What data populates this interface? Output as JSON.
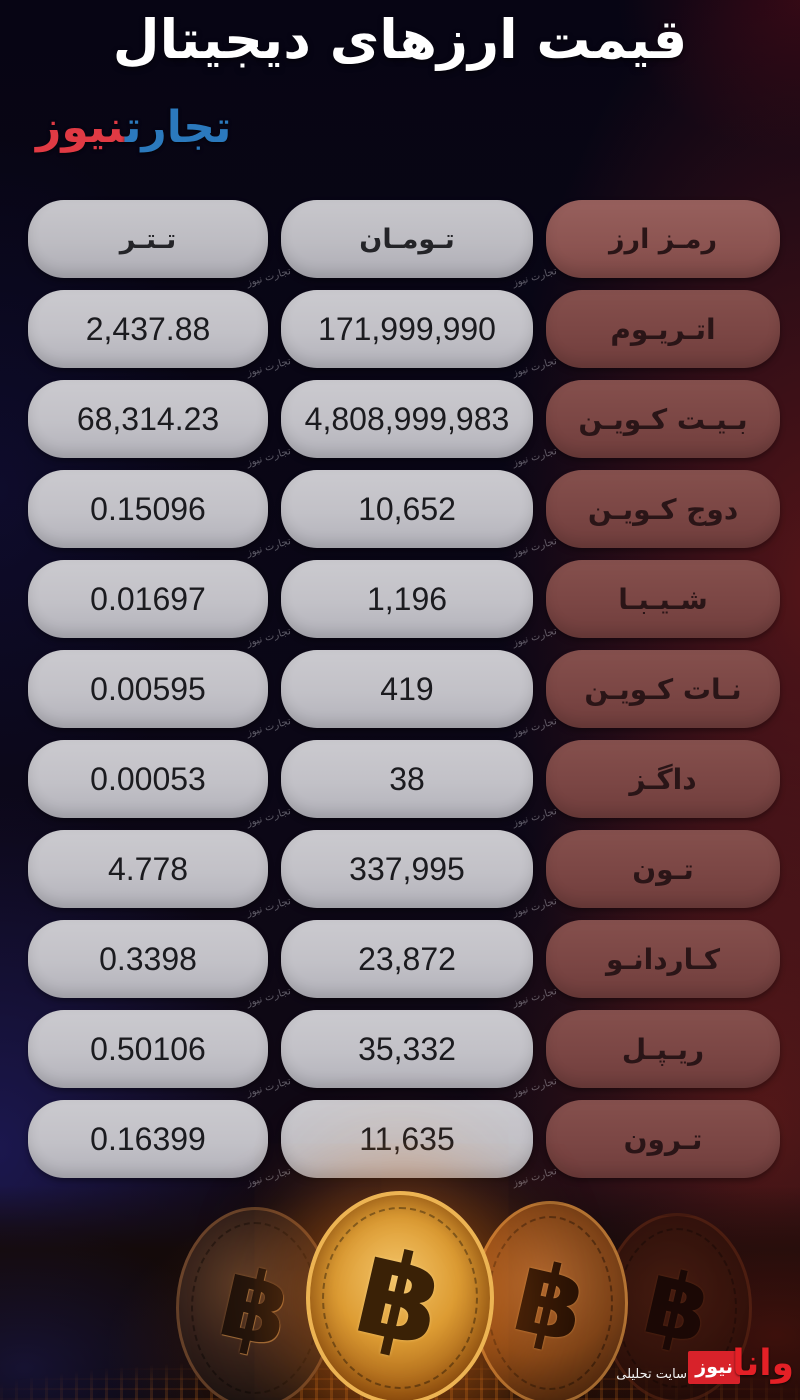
{
  "title": "قیمت ارزهای دیجیتال",
  "logo": {
    "part_blue": "تجارت",
    "part_red": "نیوز"
  },
  "watermark_seam": "تجارت نیوز",
  "table": {
    "headers": {
      "name": "رمـز ارز",
      "toman": "تـومـان",
      "tether": "تـتـر"
    },
    "rows": [
      {
        "name": "اتـریـوم",
        "toman": "171,999,990",
        "tether": "2,437.88"
      },
      {
        "name": "بـیـت کـویـن",
        "toman": "4,808,999,983",
        "tether": "68,314.23"
      },
      {
        "name": "دوج کـویـن",
        "toman": "10,652",
        "tether": "0.15096"
      },
      {
        "name": "شـیـبـا",
        "toman": "1,196",
        "tether": "0.01697"
      },
      {
        "name": "نـات کـویـن",
        "toman": "419",
        "tether": "0.00595"
      },
      {
        "name": "داگـز",
        "toman": "38",
        "tether": "0.00053"
      },
      {
        "name": "تـون",
        "toman": "337,995",
        "tether": "4.778"
      },
      {
        "name": "کـاردانـو",
        "toman": "23,872",
        "tether": "0.3398"
      },
      {
        "name": "ریـپـل",
        "toman": "35,332",
        "tether": "0.50106"
      },
      {
        "name": "تـرون",
        "toman": "11,635",
        "tether": "0.16399"
      }
    ]
  },
  "footer_watermark": {
    "brand_red": "وانا",
    "brand_box": "نیوز",
    "subtitle": "سایت تحلیلی"
  },
  "icons": {
    "bitcoin_symbol": "฿"
  },
  "colors": {
    "logo_blue": "#2b79bd",
    "logo_red": "#e03a44",
    "name_pill": "#7b4644",
    "header_name_pill": "#8c5451",
    "value_pill": "#c2c1c7",
    "wana_red": "#e42026",
    "coin_gold": "#dd9c33"
  },
  "chart_data": {
    "type": "table",
    "title": "قیمت ارزهای دیجیتال",
    "columns": [
      "رمز ارز",
      "تومان",
      "تتر"
    ],
    "rows": [
      [
        "اتریوم",
        "171,999,990",
        "2,437.88"
      ],
      [
        "بیت کوین",
        "4,808,999,983",
        "68,314.23"
      ],
      [
        "دوج کوین",
        "10,652",
        "0.15096"
      ],
      [
        "شیبا",
        "1,196",
        "0.01697"
      ],
      [
        "نات کوین",
        "419",
        "0.00595"
      ],
      [
        "داگز",
        "38",
        "0.00053"
      ],
      [
        "تون",
        "337,995",
        "4.778"
      ],
      [
        "کاردانو",
        "23,872",
        "0.3398"
      ],
      [
        "ریپل",
        "35,332",
        "0.50106"
      ],
      [
        "ترون",
        "11,635",
        "0.16399"
      ]
    ]
  }
}
